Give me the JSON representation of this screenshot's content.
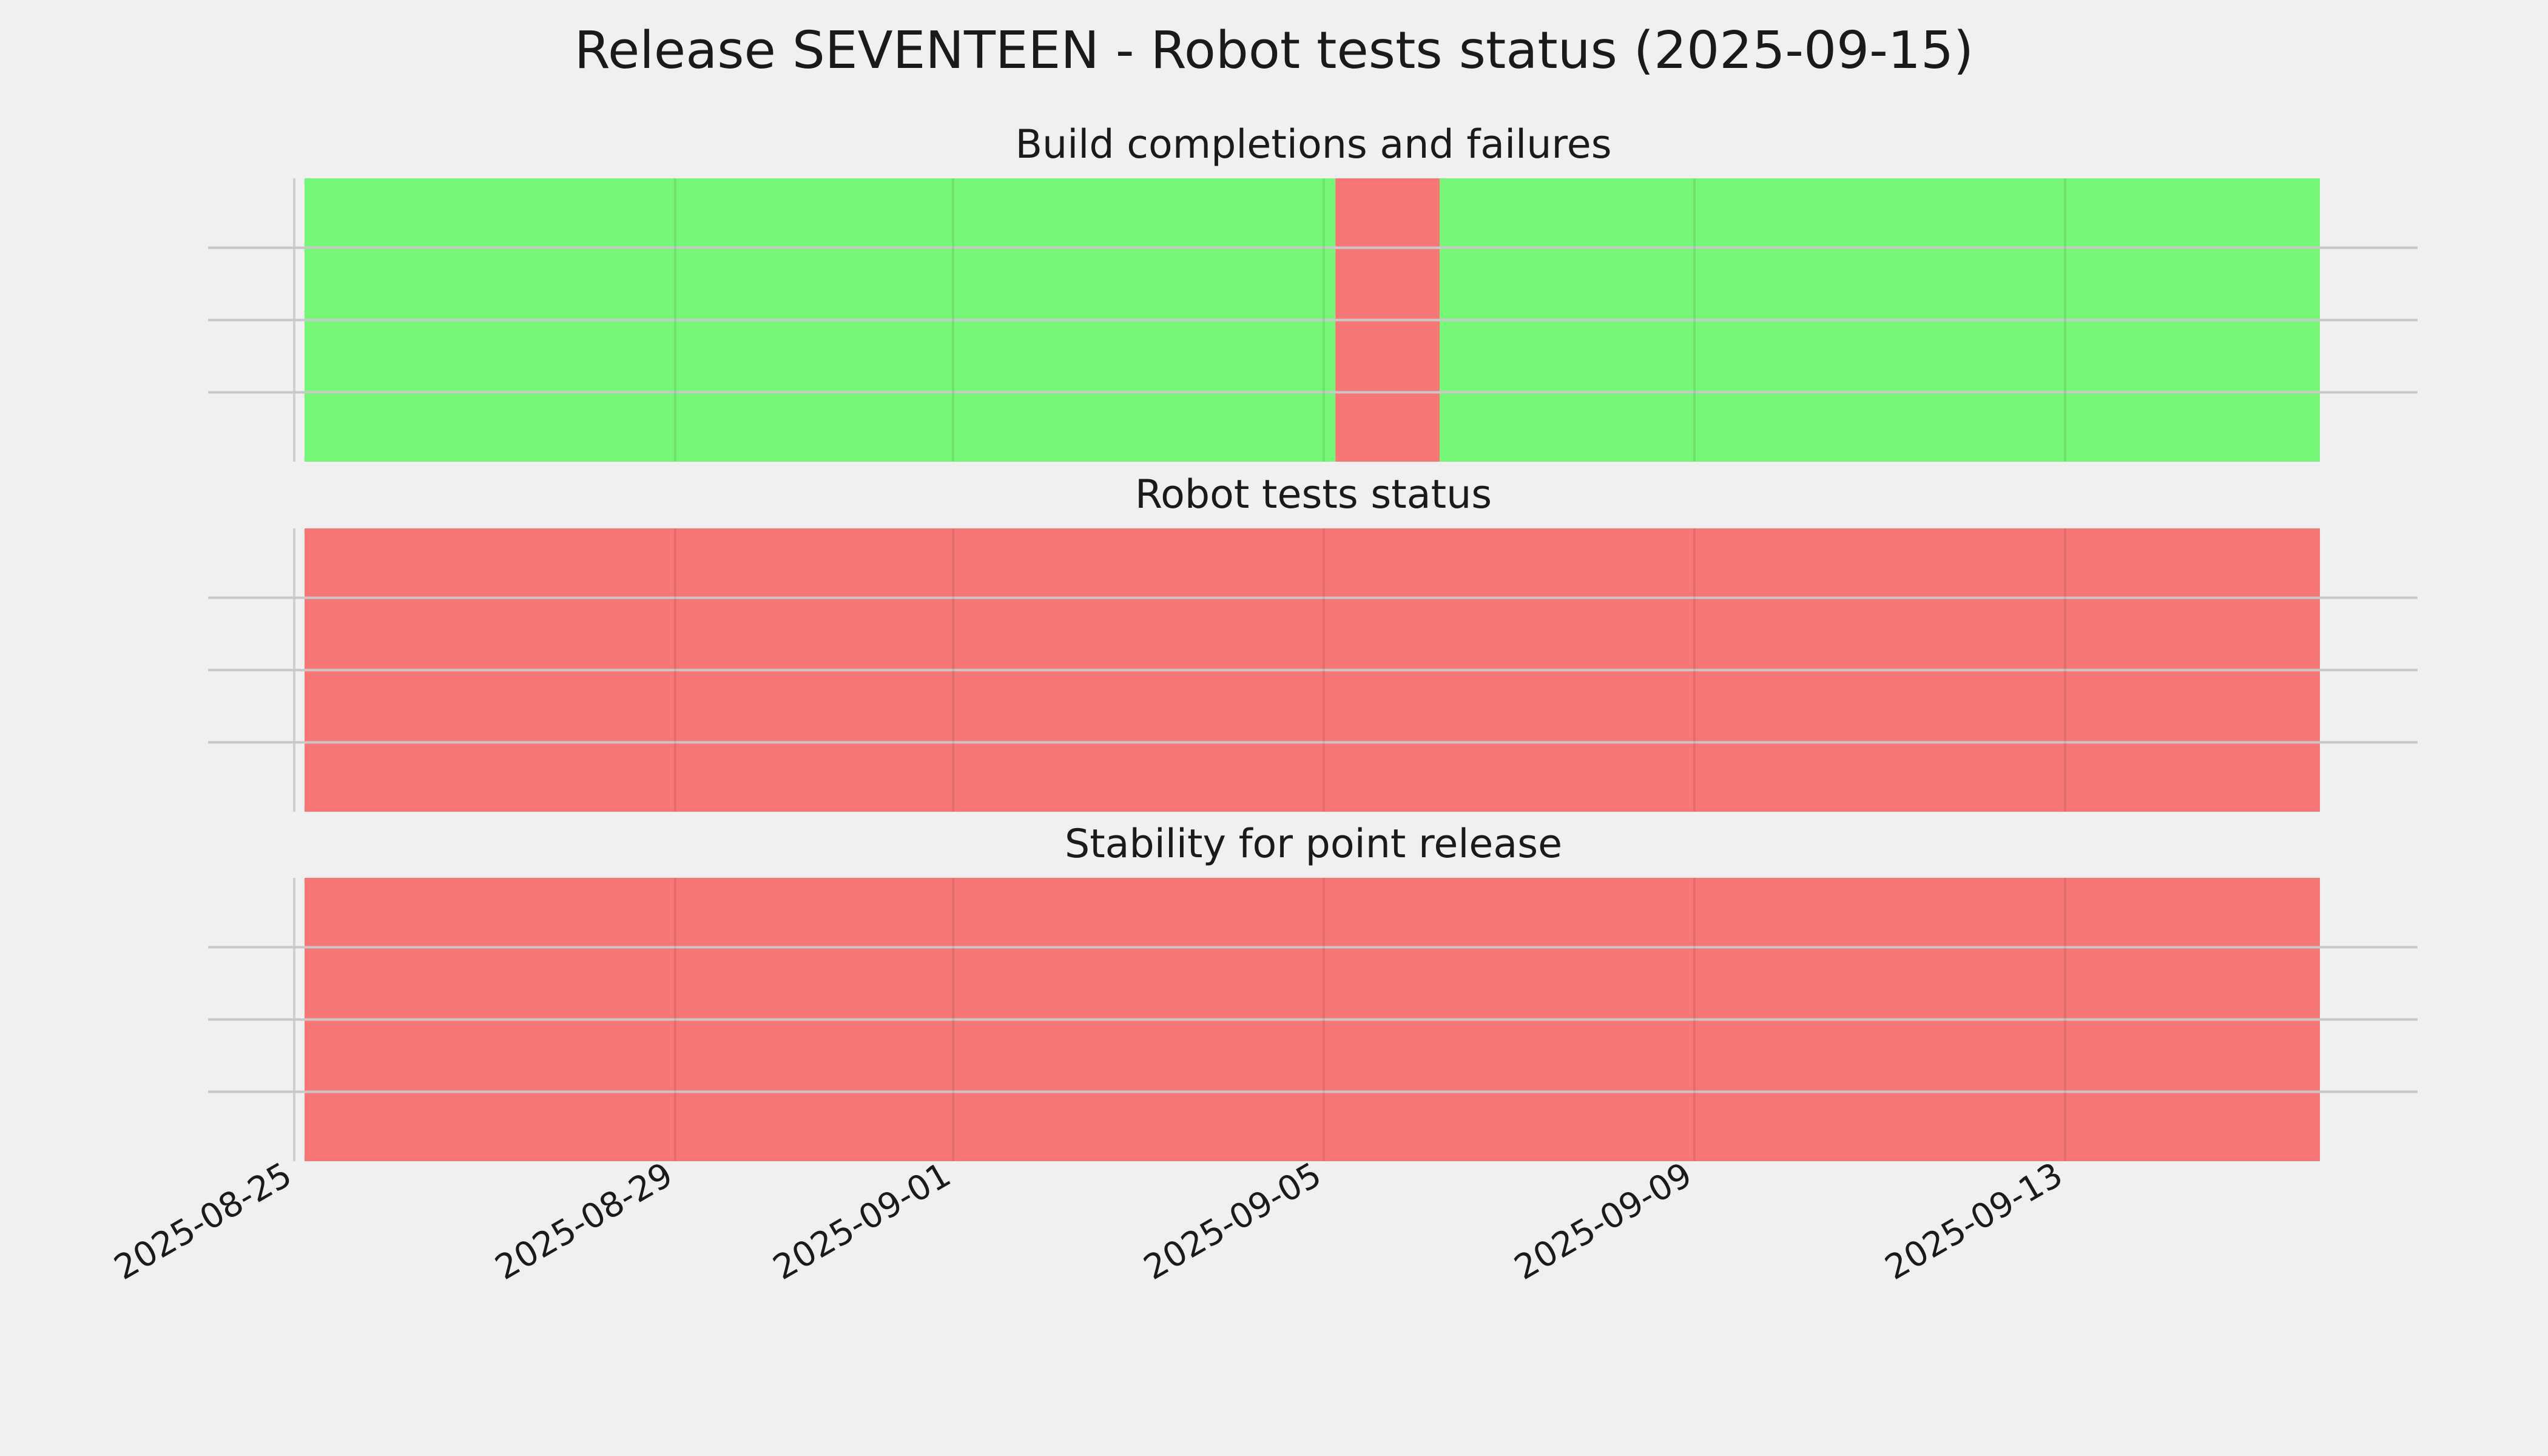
{
  "title": "Release SEVENTEEN - Robot tests status (2025-09-15)",
  "colors": {
    "ok": "#77f777",
    "fail": "#f77777",
    "background": "#f0f0f0",
    "grid": "#c8c8c8"
  },
  "chart_data": [
    {
      "type": "timeline",
      "title": "Build completions and failures",
      "x_start": "2025-08-25",
      "x_end": "2025-09-15",
      "segments": [
        {
          "start": "2025-08-25",
          "end": "2025-09-05 03:00",
          "status": "ok"
        },
        {
          "start": "2025-09-05 03:00",
          "end": "2025-09-06 06:00",
          "status": "fail"
        },
        {
          "start": "2025-09-06 06:00",
          "end": "2025-09-15 18:00",
          "status": "ok"
        }
      ]
    },
    {
      "type": "timeline",
      "title": "Robot tests status",
      "x_start": "2025-08-25",
      "x_end": "2025-09-15",
      "segments": [
        {
          "start": "2025-08-25",
          "end": "2025-09-15 18:00",
          "status": "fail"
        }
      ]
    },
    {
      "type": "timeline",
      "title": "Stability for point release",
      "x_start": "2025-08-25",
      "x_end": "2025-09-15",
      "segments": [
        {
          "start": "2025-08-25",
          "end": "2025-09-15 18:00",
          "status": "fail"
        }
      ]
    }
  ],
  "x_ticks": [
    "2025-08-25",
    "2025-08-29",
    "2025-09-01",
    "2025-09-05",
    "2025-09-09",
    "2025-09-13"
  ],
  "grid": true
}
